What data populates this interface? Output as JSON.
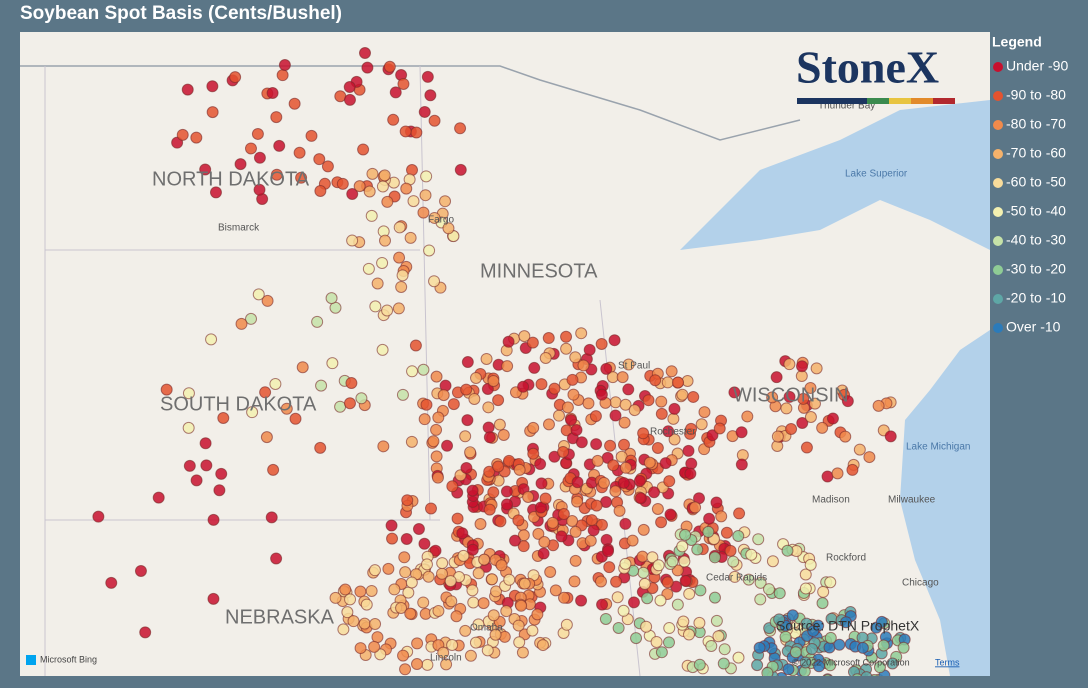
{
  "header": {
    "title": "Soybean Spot Basis (Cents/Bushel)"
  },
  "legend": {
    "title": "Legend",
    "items": [
      {
        "label": "Under -90",
        "color": "#c8102e"
      },
      {
        "label": "-90 to -80",
        "color": "#e4532f"
      },
      {
        "label": "-80 to -70",
        "color": "#f08a4b"
      },
      {
        "label": "-70 to -60",
        "color": "#f5b26b"
      },
      {
        "label": "-60 to -50",
        "color": "#f8dc9b"
      },
      {
        "label": "-50 to -40",
        "color": "#f3f0b0"
      },
      {
        "label": "-40 to -30",
        "color": "#c6e2a8"
      },
      {
        "label": "-30 to -20",
        "color": "#8fcc95"
      },
      {
        "label": "-20 to -10",
        "color": "#5ea7a6"
      },
      {
        "label": "Over -10",
        "color": "#2b7bba"
      }
    ]
  },
  "map": {
    "states": [
      "NORTH DAKOTA",
      "MINNESOTA",
      "SOUTH DAKOTA",
      "WISCONSIN",
      "NEBRASKA"
    ],
    "cities": [
      "Bismarck",
      "Fargo",
      "St Paul",
      "Rochester",
      "Madison",
      "Milwaukee",
      "Rockford",
      "Chicago",
      "Cedar Rapids",
      "Omaha",
      "Lincoln",
      "Thunder Bay"
    ],
    "waters": [
      "Lake Superior",
      "Lake Michigan"
    ]
  },
  "logo": "StoneX",
  "source": "Source: DTN ProphetX",
  "attribution": {
    "provider": "Microsoft Bing",
    "copyright": "© 2022 Microsoft Corporation",
    "terms": "Terms"
  }
}
